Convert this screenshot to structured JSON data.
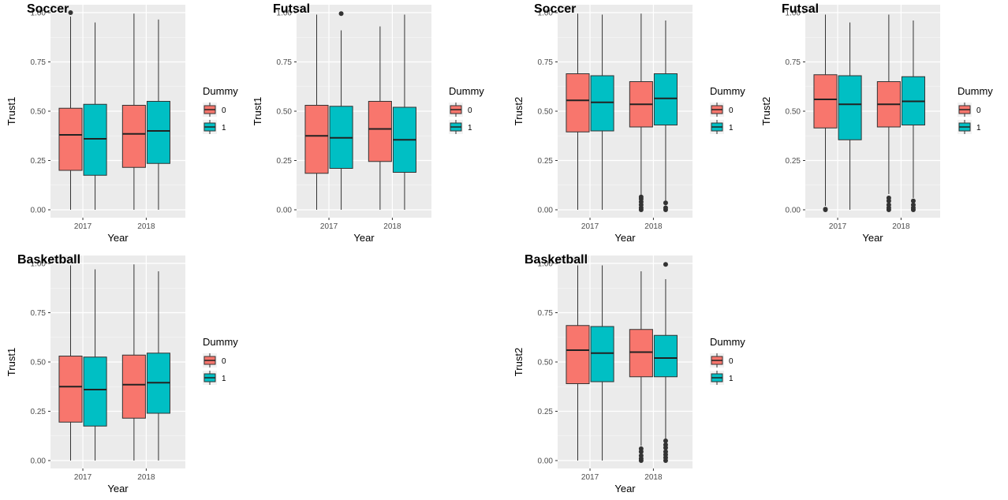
{
  "colors": {
    "dummy_0": "#F8766D",
    "dummy_1": "#00BFC4",
    "panel_bg": "#EBEBEB",
    "grid": "#FFFFFF",
    "box_line": "#333333"
  },
  "chart_data": [
    {
      "type": "box",
      "title": "Soccer",
      "xlabel": "Year",
      "ylabel": "Trust1",
      "categories": [
        "2017",
        "2018"
      ],
      "yticks": [
        "0.00",
        "0.25",
        "0.50",
        "0.75",
        "1.00"
      ],
      "ylim": [
        -0.04,
        1.04
      ],
      "legend": {
        "title": "Dummy",
        "entries": [
          "0",
          "1"
        ],
        "placement": "right"
      },
      "groups": [
        {
          "category": "2017",
          "dummy": "0",
          "min": 0.0,
          "q1": 0.2,
          "median": 0.38,
          "q3": 0.515,
          "max": 0.98,
          "outliers": [
            1.0
          ]
        },
        {
          "category": "2017",
          "dummy": "1",
          "min": 0.0,
          "q1": 0.175,
          "median": 0.36,
          "q3": 0.535,
          "max": 0.95,
          "outliers": []
        },
        {
          "category": "2018",
          "dummy": "0",
          "min": 0.0,
          "q1": 0.215,
          "median": 0.385,
          "q3": 0.53,
          "max": 0.995,
          "outliers": []
        },
        {
          "category": "2018",
          "dummy": "1",
          "min": 0.0,
          "q1": 0.235,
          "median": 0.4,
          "q3": 0.55,
          "max": 0.965,
          "outliers": []
        }
      ]
    },
    {
      "type": "box",
      "title": "Futsal",
      "xlabel": "Year",
      "ylabel": "Trust1",
      "categories": [
        "2017",
        "2018"
      ],
      "yticks": [
        "0.00",
        "0.25",
        "0.50",
        "0.75",
        "1.00"
      ],
      "ylim": [
        -0.04,
        1.04
      ],
      "legend": {
        "title": "Dummy",
        "entries": [
          "0",
          "1"
        ],
        "placement": "right"
      },
      "groups": [
        {
          "category": "2017",
          "dummy": "0",
          "min": 0.0,
          "q1": 0.185,
          "median": 0.375,
          "q3": 0.53,
          "max": 0.99,
          "outliers": []
        },
        {
          "category": "2017",
          "dummy": "1",
          "min": 0.0,
          "q1": 0.21,
          "median": 0.365,
          "q3": 0.525,
          "max": 0.91,
          "outliers": [
            0.995
          ]
        },
        {
          "category": "2018",
          "dummy": "0",
          "min": 0.0,
          "q1": 0.245,
          "median": 0.41,
          "q3": 0.55,
          "max": 0.93,
          "outliers": []
        },
        {
          "category": "2018",
          "dummy": "1",
          "min": 0.0,
          "q1": 0.19,
          "median": 0.355,
          "q3": 0.52,
          "max": 0.99,
          "outliers": []
        }
      ]
    },
    {
      "type": "box",
      "title": "Soccer",
      "xlabel": "Year",
      "ylabel": "Trust2",
      "categories": [
        "2017",
        "2018"
      ],
      "yticks": [
        "0.00",
        "0.25",
        "0.50",
        "0.75",
        "1.00"
      ],
      "ylim": [
        -0.04,
        1.04
      ],
      "legend": {
        "title": "Dummy",
        "entries": [
          "0",
          "1"
        ],
        "placement": "right"
      },
      "groups": [
        {
          "category": "2017",
          "dummy": "0",
          "min": 0.0,
          "q1": 0.395,
          "median": 0.555,
          "q3": 0.69,
          "max": 0.995,
          "outliers": []
        },
        {
          "category": "2017",
          "dummy": "1",
          "min": 0.0,
          "q1": 0.4,
          "median": 0.545,
          "q3": 0.68,
          "max": 0.99,
          "outliers": []
        },
        {
          "category": "2018",
          "dummy": "0",
          "min": 0.075,
          "q1": 0.42,
          "median": 0.535,
          "q3": 0.65,
          "max": 0.995,
          "outliers": [
            0.0,
            0.01,
            0.025,
            0.04,
            0.055,
            0.065
          ]
        },
        {
          "category": "2018",
          "dummy": "1",
          "min": 0.045,
          "q1": 0.43,
          "median": 0.565,
          "q3": 0.69,
          "max": 0.96,
          "outliers": [
            0.0,
            0.01,
            0.035
          ]
        }
      ]
    },
    {
      "type": "box",
      "title": "Futsal",
      "xlabel": "Year",
      "ylabel": "Trust2",
      "categories": [
        "2017",
        "2018"
      ],
      "yticks": [
        "0.00",
        "0.25",
        "0.50",
        "0.75",
        "1.00"
      ],
      "ylim": [
        -0.04,
        1.04
      ],
      "legend": {
        "title": "Dummy",
        "entries": [
          "0",
          "1"
        ],
        "placement": "right"
      },
      "groups": [
        {
          "category": "2017",
          "dummy": "0",
          "min": 0.02,
          "q1": 0.415,
          "median": 0.56,
          "q3": 0.685,
          "max": 0.99,
          "outliers": [
            0.0,
            0.003
          ]
        },
        {
          "category": "2017",
          "dummy": "1",
          "min": 0.0,
          "q1": 0.355,
          "median": 0.535,
          "q3": 0.68,
          "max": 0.95,
          "outliers": []
        },
        {
          "category": "2018",
          "dummy": "0",
          "min": 0.08,
          "q1": 0.42,
          "median": 0.535,
          "q3": 0.65,
          "max": 0.99,
          "outliers": [
            0.0,
            0.01,
            0.025,
            0.045,
            0.06
          ]
        },
        {
          "category": "2018",
          "dummy": "1",
          "min": 0.06,
          "q1": 0.43,
          "median": 0.55,
          "q3": 0.675,
          "max": 0.96,
          "outliers": [
            0.0,
            0.01,
            0.025,
            0.045
          ]
        }
      ]
    },
    {
      "type": "box",
      "title": "Basketball",
      "xlabel": "Year",
      "ylabel": "Trust1",
      "categories": [
        "2017",
        "2018"
      ],
      "yticks": [
        "0.00",
        "0.25",
        "0.50",
        "0.75",
        "1.00"
      ],
      "ylim": [
        -0.04,
        1.04
      ],
      "legend": {
        "title": "Dummy",
        "entries": [
          "0",
          "1"
        ],
        "placement": "right"
      },
      "groups": [
        {
          "category": "2017",
          "dummy": "0",
          "min": 0.0,
          "q1": 0.195,
          "median": 0.375,
          "q3": 0.53,
          "max": 0.99,
          "outliers": []
        },
        {
          "category": "2017",
          "dummy": "1",
          "min": 0.0,
          "q1": 0.175,
          "median": 0.36,
          "q3": 0.525,
          "max": 0.97,
          "outliers": []
        },
        {
          "category": "2018",
          "dummy": "0",
          "min": 0.0,
          "q1": 0.215,
          "median": 0.385,
          "q3": 0.535,
          "max": 0.995,
          "outliers": []
        },
        {
          "category": "2018",
          "dummy": "1",
          "min": 0.0,
          "q1": 0.24,
          "median": 0.395,
          "q3": 0.545,
          "max": 0.96,
          "outliers": []
        }
      ]
    },
    {
      "type": "box",
      "title": "Basketball",
      "xlabel": "Year",
      "ylabel": "Trust2",
      "categories": [
        "2017",
        "2018"
      ],
      "yticks": [
        "0.00",
        "0.25",
        "0.50",
        "0.75",
        "1.00"
      ],
      "ylim": [
        -0.04,
        1.04
      ],
      "legend": {
        "title": "Dummy",
        "entries": [
          "0",
          "1"
        ],
        "placement": "right"
      },
      "groups": [
        {
          "category": "2017",
          "dummy": "0",
          "min": 0.0,
          "q1": 0.39,
          "median": 0.56,
          "q3": 0.685,
          "max": 0.99,
          "outliers": []
        },
        {
          "category": "2017",
          "dummy": "1",
          "min": 0.0,
          "q1": 0.4,
          "median": 0.545,
          "q3": 0.68,
          "max": 0.99,
          "outliers": []
        },
        {
          "category": "2018",
          "dummy": "0",
          "min": 0.075,
          "q1": 0.425,
          "median": 0.55,
          "q3": 0.665,
          "max": 0.96,
          "outliers": [
            0.0,
            0.01,
            0.025,
            0.045,
            0.06
          ]
        },
        {
          "category": "2018",
          "dummy": "1",
          "min": 0.11,
          "q1": 0.425,
          "median": 0.52,
          "q3": 0.635,
          "max": 0.92,
          "outliers": [
            0.0,
            0.015,
            0.03,
            0.045,
            0.065,
            0.08,
            0.1,
            0.995
          ]
        }
      ]
    }
  ]
}
